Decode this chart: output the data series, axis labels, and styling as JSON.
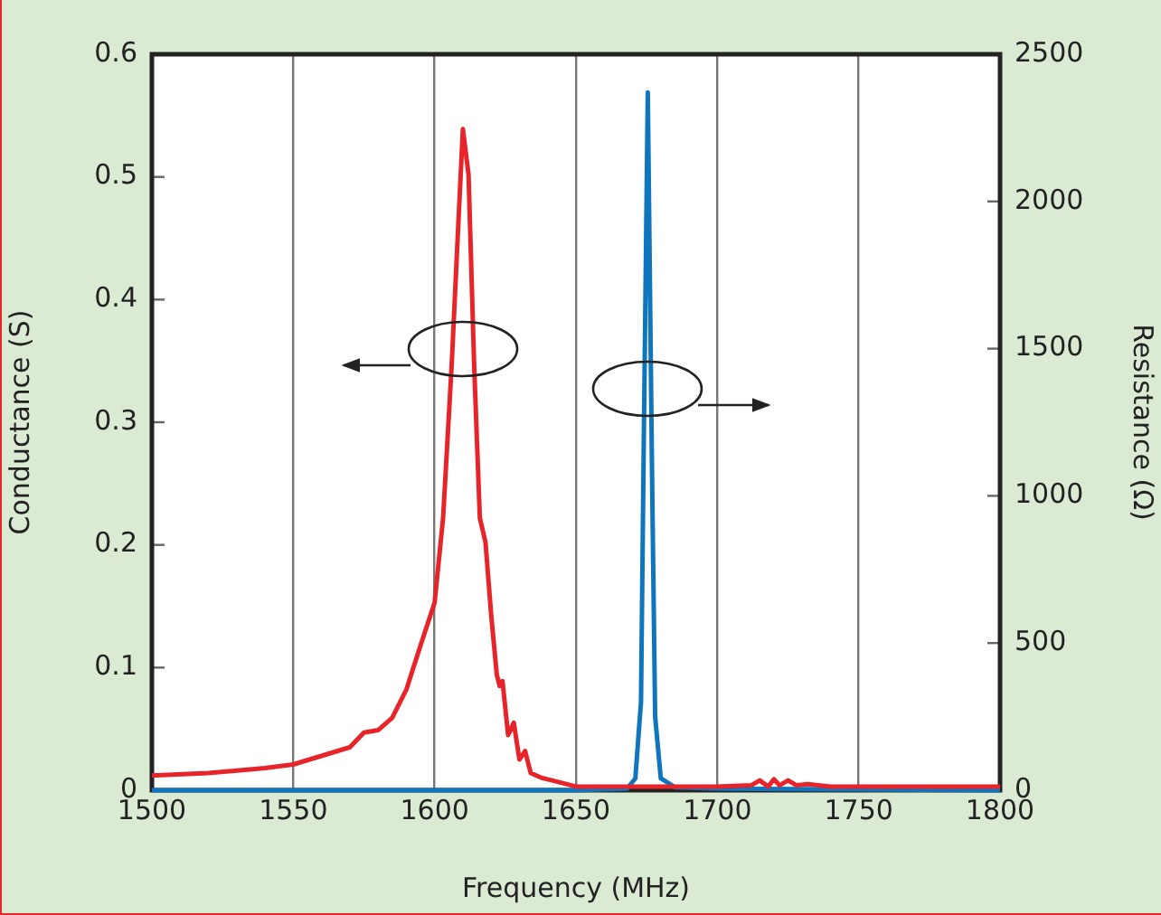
{
  "chart_data": {
    "type": "line",
    "xlabel": "Frequency (MHz)",
    "ylabel": "Conductance (S)",
    "y2label": "Resistance (Ω)",
    "xlim": [
      1500,
      1800
    ],
    "xticks": [
      1500,
      1550,
      1600,
      1650,
      1700,
      1750,
      1800
    ],
    "ylim": [
      0,
      0.6
    ],
    "yticks": [
      0,
      0.1,
      0.2,
      0.3,
      0.4,
      0.5,
      0.6
    ],
    "y2lim": [
      0,
      2500
    ],
    "y2ticks": [
      0,
      500,
      1000,
      1500,
      2000,
      2500
    ],
    "grid": "x",
    "marker": "none",
    "line_style": "solid",
    "series": [
      {
        "color": "#e8242b",
        "x": [
          1500,
          1520,
          1540,
          1550,
          1560,
          1570,
          1575,
          1580,
          1585,
          1590,
          1595,
          1600,
          1603,
          1606,
          1608,
          1610,
          1612,
          1614,
          1616,
          1618,
          1620,
          1622,
          1623,
          1624,
          1626,
          1628,
          1630,
          1632,
          1634,
          1638,
          1645,
          1650,
          1700,
          1712,
          1715,
          1718,
          1720,
          1722,
          1725,
          1728,
          1732,
          1740,
          1800
        ],
        "values": [
          0.012,
          0.014,
          0.018,
          0.021,
          0.028,
          0.035,
          0.047,
          0.049,
          0.059,
          0.082,
          0.118,
          0.153,
          0.222,
          0.345,
          0.443,
          0.539,
          0.502,
          0.345,
          0.222,
          0.202,
          0.143,
          0.094,
          0.085,
          0.089,
          0.045,
          0.055,
          0.025,
          0.032,
          0.014,
          0.01,
          0.006,
          0.003,
          0.003,
          0.004,
          0.008,
          0.003,
          0.009,
          0.004,
          0.008,
          0.004,
          0.005,
          0.003,
          0.003
        ]
      },
      {
        "color": "#0f75bd",
        "axis": "y2",
        "x": [
          1500,
          1650,
          1668,
          1671,
          1673,
          1674,
          1675.4,
          1677,
          1678,
          1680,
          1685,
          1700,
          1800
        ],
        "values": [
          0,
          0,
          5,
          40,
          300,
          1200,
          2370,
          1000,
          250,
          40,
          10,
          5,
          0
        ]
      }
    ]
  }
}
